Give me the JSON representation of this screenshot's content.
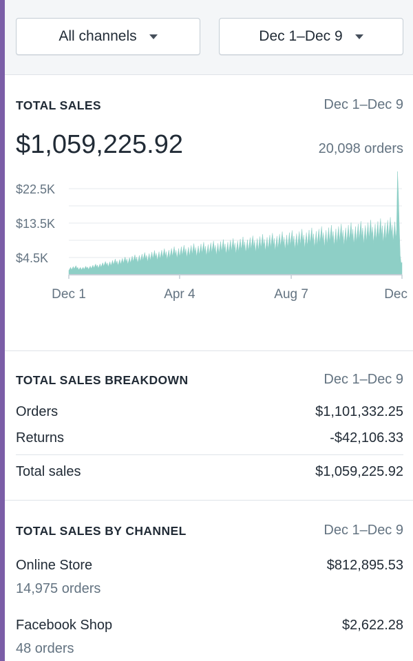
{
  "filters": {
    "channel_label": "All channels",
    "date_label": "Dec 1–Dec 9"
  },
  "total_sales": {
    "title": "TOTAL SALES",
    "date_range": "Dec 1–Dec 9",
    "amount": "$1,059,225.92",
    "orders": "20,098 orders"
  },
  "chart_data": {
    "type": "area",
    "color": "#8ecfc6",
    "y_ticks": [
      "$22.5K",
      "$13.5K",
      "$4.5K"
    ],
    "y_tick_values": [
      22500,
      13500,
      4500
    ],
    "ylim": [
      0,
      27000
    ],
    "x_tick_labels": [
      "Dec 1",
      "Apr 4",
      "Aug 7",
      "Dec"
    ],
    "x_tick_index": [
      0,
      124,
      249,
      373
    ],
    "grid": true,
    "values": [
      1600,
      1650,
      1700,
      1700,
      1750,
      1800,
      1850,
      1900,
      1900,
      1850,
      1800,
      1800,
      1750,
      1700,
      1700,
      1650,
      1650,
      1700,
      1750,
      1800,
      1850,
      1900,
      1950,
      1950,
      2000,
      2050,
      2100,
      2100,
      2150,
      2200,
      2250,
      2300,
      2350,
      2400,
      2450,
      2500,
      2550,
      2600,
      2650,
      2700,
      2750,
      2800,
      2850,
      2900,
      2900,
      2950,
      3000,
      3050,
      3100,
      3150,
      3200,
      3250,
      3300,
      3300,
      3350,
      3400,
      3450,
      3500,
      3550,
      3600,
      3600,
      3650,
      3700,
      3750,
      3800,
      3850,
      3900,
      3900,
      3950,
      4000,
      4050,
      4100,
      4150,
      4200,
      4200,
      4250,
      4300,
      4350,
      4400,
      4450,
      4500,
      4500,
      4550,
      4600,
      4650,
      4700,
      4700,
      4750,
      4800,
      4850,
      4900,
      4900,
      4950,
      5000,
      5050,
      5100,
      5100,
      5150,
      5200,
      5250,
      5300,
      5300,
      5350,
      5400,
      5400,
      5450,
      5500,
      5500,
      5550,
      5600,
      5600,
      5650,
      5700,
      5700,
      5750,
      5800,
      5800,
      5850,
      5900,
      5900,
      5950,
      6000,
      6000,
      6050,
      6050,
      6100,
      6150,
      6150,
      6200,
      6200,
      6250,
      6300,
      6300,
      6350,
      6350,
      6400,
      6400,
      6450,
      6500,
      6500,
      6550,
      6550,
      6600,
      6600,
      6650,
      6650,
      6700,
      6750,
      6750,
      6800,
      6800,
      6850,
      6850,
      6900,
      6900,
      6950,
      6950,
      7000,
      7000,
      7050,
      7050,
      7100,
      7100,
      7150,
      7150,
      7200,
      7200,
      7250,
      7250,
      7300,
      7300,
      7350,
      7350,
      7400,
      7400,
      7450,
      7450,
      7500,
      7500,
      7550,
      7550,
      7600,
      7600,
      7650,
      7650,
      7700,
      7700,
      7750,
      7750,
      7800,
      7800,
      7850,
      7850,
      7900,
      7900,
      7950,
      7950,
      8000,
      8000,
      8050,
      8050,
      8100,
      8100,
      8150,
      8150,
      8200,
      8200,
      8250,
      8250,
      8300,
      8300,
      8350,
      8350,
      8400,
      8400,
      8450,
      8450,
      8500,
      8500,
      8550,
      8550,
      8600,
      8600,
      8650,
      8650,
      8700,
      8700,
      8750,
      8750,
      8800,
      8800,
      8850,
      8850,
      8900,
      8900,
      8950,
      8950,
      9000,
      9000,
      9050,
      9050,
      9100,
      9100,
      9150,
      9150,
      9200,
      9200,
      9250,
      9250,
      9300,
      9300,
      9350,
      9350,
      9400,
      9400,
      9450,
      9450,
      9500,
      9500,
      9550,
      9550,
      9600,
      9600,
      9650,
      9650,
      9700,
      9700,
      9750,
      9750,
      9800,
      9800,
      9850,
      9850,
      9900,
      9900,
      9950,
      9950,
      10000,
      10000,
      10050,
      10050,
      10100,
      10100,
      10150,
      10150,
      10200,
      10200,
      10250,
      10250,
      10300,
      10300,
      10350,
      10350,
      10400,
      10400,
      10450,
      10450,
      10500,
      10500,
      10550,
      10550,
      10600,
      10600,
      10650,
      10650,
      10700,
      10700,
      10750,
      10750,
      10800,
      10800,
      10850,
      10850,
      10900,
      10900,
      10950,
      10950,
      11000,
      11000,
      11050,
      11050,
      11100,
      11100,
      11150,
      11150,
      11200,
      11200,
      11250,
      11250,
      11300,
      11300,
      11350,
      11350,
      11400,
      11400,
      11450,
      11450,
      11500,
      11500,
      11550,
      11550,
      11600,
      11600,
      11650,
      11650,
      11700,
      11700,
      11750,
      11750,
      11800,
      11800,
      11850,
      11850,
      11900,
      11900,
      11950,
      11950,
      12000,
      12000,
      12050,
      12050,
      12100,
      12100,
      12150,
      12150,
      12200,
      12200,
      12250,
      25500,
      26000,
      12000,
      4000,
      3500,
      3000
    ]
  },
  "breakdown": {
    "title": "TOTAL SALES BREAKDOWN",
    "date_range": "Dec 1–Dec 9",
    "rows": [
      {
        "label": "Orders",
        "value": "$1,101,332.25"
      },
      {
        "label": "Returns",
        "value": "-$42,106.33"
      }
    ],
    "total": {
      "label": "Total sales",
      "value": "$1,059,225.92"
    }
  },
  "by_channel": {
    "title": "TOTAL SALES BY CHANNEL",
    "date_range": "Dec 1–Dec 9",
    "channels": [
      {
        "name": "Online Store",
        "value": "$812,895.53",
        "orders": "14,975 orders"
      },
      {
        "name": "Facebook Shop",
        "value": "$2,622.28",
        "orders": "48 orders"
      }
    ]
  }
}
